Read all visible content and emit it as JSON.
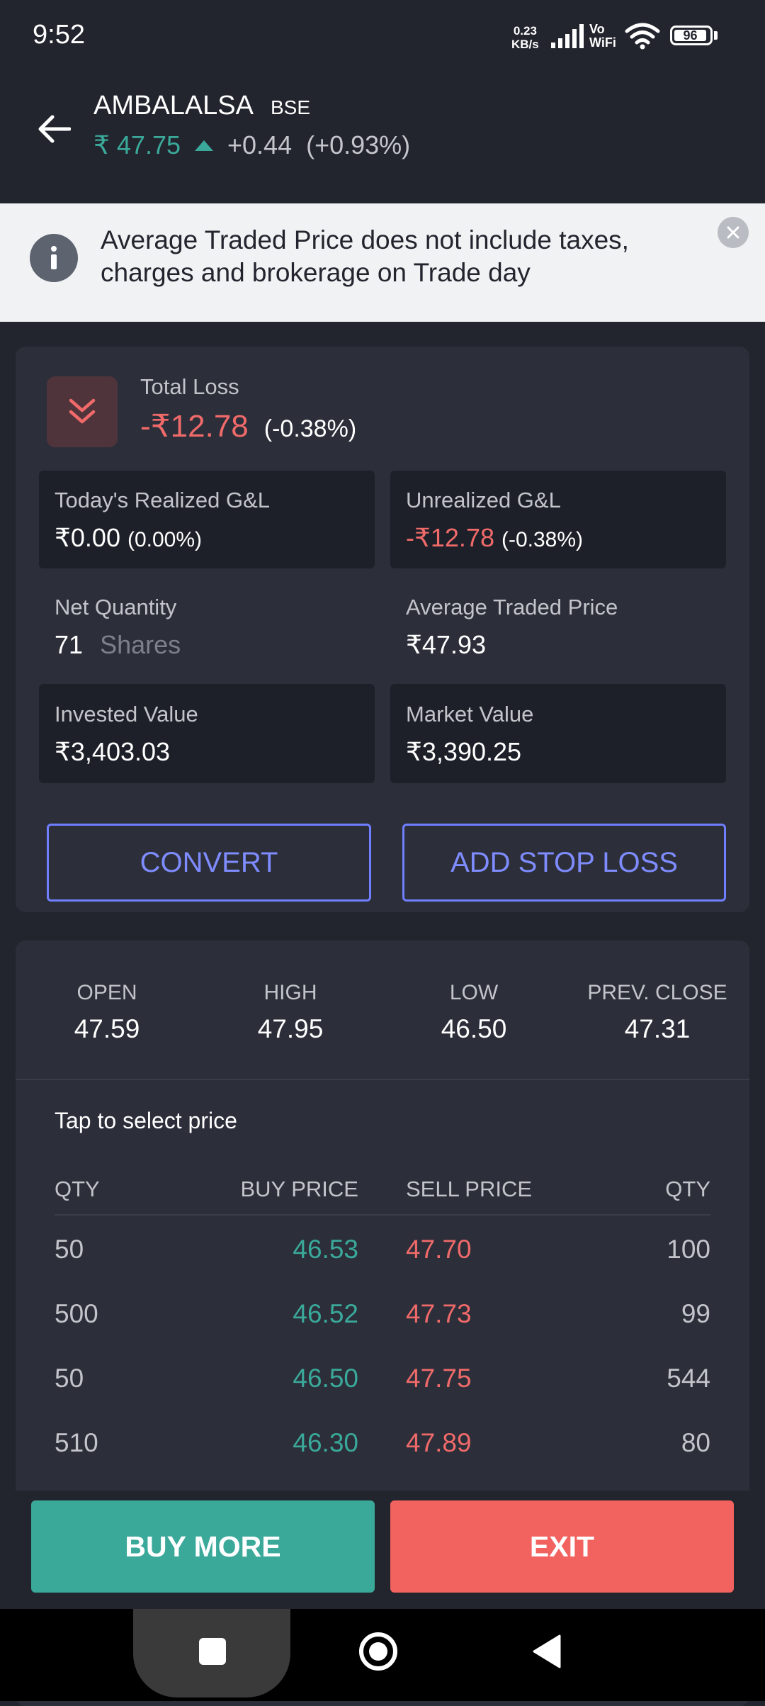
{
  "status_bar": {
    "time": "9:52",
    "net_speed_value": "0.23",
    "net_speed_unit": "KB/s",
    "vowifi_top": "Vo",
    "vowifi_bottom": "WiFi",
    "battery": "96"
  },
  "header": {
    "symbol": "AMBALALSA",
    "exchange": "BSE",
    "price": "₹ 47.75",
    "change": "+0.44",
    "change_pct": "(+0.93%)"
  },
  "info_banner": {
    "text": "Average Traded Price does not include taxes, charges and brokerage on Trade day"
  },
  "position": {
    "total_loss_label": "Total Loss",
    "total_loss_value": "-₹12.78",
    "total_loss_pct": "(-0.38%)",
    "realized_label": "Today's Realized G&L",
    "realized_value": "₹0.00",
    "realized_pct": "(0.00%)",
    "unrealized_label": "Unrealized G&L",
    "unrealized_value": "-₹12.78",
    "unrealized_pct": "(-0.38%)",
    "net_qty_label": "Net Quantity",
    "net_qty_value": "71",
    "net_qty_unit": "Shares",
    "atp_label": "Average Traded Price",
    "atp_value": "₹47.93",
    "invested_label": "Invested Value",
    "invested_value": "₹3,403.03",
    "market_label": "Market Value",
    "market_value": "₹3,390.25",
    "convert_label": "CONVERT",
    "stop_loss_label": "ADD STOP LOSS"
  },
  "ohlc": [
    {
      "label": "OPEN",
      "value": "47.59"
    },
    {
      "label": "HIGH",
      "value": "47.95"
    },
    {
      "label": "LOW",
      "value": "46.50"
    },
    {
      "label": "PREV. CLOSE",
      "value": "47.31"
    }
  ],
  "depth": {
    "tap_label": "Tap to select price",
    "headers": {
      "bid_qty": "QTY",
      "buy_price": "BUY PRICE",
      "sell_price": "SELL PRICE",
      "ask_qty": "QTY"
    },
    "rows": [
      {
        "bid_qty": "50",
        "buy": "46.53",
        "sell": "47.70",
        "ask_qty": "100"
      },
      {
        "bid_qty": "500",
        "buy": "46.52",
        "sell": "47.73",
        "ask_qty": "99"
      },
      {
        "bid_qty": "50",
        "buy": "46.50",
        "sell": "47.75",
        "ask_qty": "544"
      },
      {
        "bid_qty": "510",
        "buy": "46.30",
        "sell": "47.89",
        "ask_qty": "80"
      }
    ]
  },
  "actions": {
    "buy_more": "BUY MORE",
    "exit": "EXIT"
  },
  "colors": {
    "background": "#23252e",
    "card": "#2c2f3a",
    "positive": "#3aa99a",
    "negative": "#f06a6a",
    "accent_outline": "#6f7fff",
    "exit_button": "#f2625e"
  }
}
